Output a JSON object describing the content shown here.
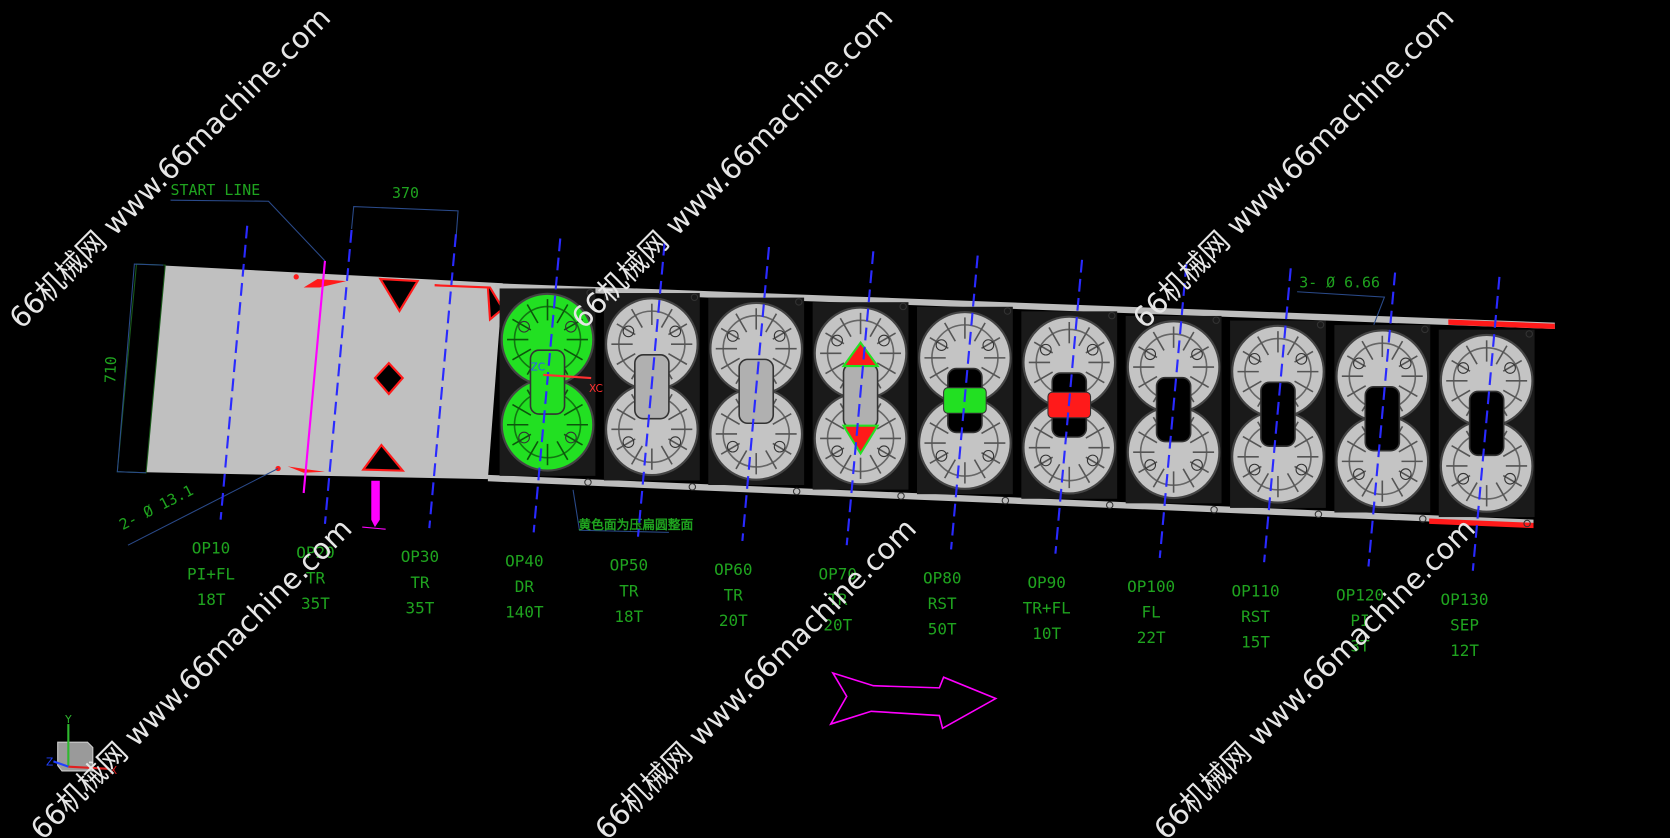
{
  "colors": {
    "background": "#000000",
    "label": "#1fa31f",
    "centerline": "#2a2aff",
    "cut": "#ff1a1a",
    "formed": "#22e022",
    "strip": "#c0c0c0",
    "pilot_line": "#ff00ff",
    "leader": "#2a4a8a"
  },
  "dimensions": {
    "start_line": "START LINE",
    "pitch": "370",
    "width": "710",
    "pilot_holes_left": "2- Ø 13.1",
    "pilot_holes_right": "3- Ø 6.66"
  },
  "note": "黄色面为压扁圆整面",
  "triad": {
    "x": "X",
    "y": "Y",
    "z": "Z"
  },
  "wcs": {
    "xc": "XC",
    "zc": "ZC"
  },
  "watermark": "66机械网 www.66machine.com",
  "stations": [
    {
      "op": "OP10",
      "process": "PI+FL",
      "tonnage": "18T",
      "state": "blank"
    },
    {
      "op": "OP20",
      "process": "TR",
      "tonnage": "35T",
      "state": "blank"
    },
    {
      "op": "OP30",
      "process": "TR",
      "tonnage": "35T",
      "state": "blank"
    },
    {
      "op": "OP40",
      "process": "DR",
      "tonnage": "140T",
      "state": "green"
    },
    {
      "op": "OP50",
      "process": "TR",
      "tonnage": "18T",
      "state": "gray"
    },
    {
      "op": "OP60",
      "process": "TR",
      "tonnage": "20T",
      "state": "gray"
    },
    {
      "op": "OP70",
      "process": "TR",
      "tonnage": "20T",
      "state": "red"
    },
    {
      "op": "OP80",
      "process": "RST",
      "tonnage": "50T",
      "state": "green-center"
    },
    {
      "op": "OP90",
      "process": "TR+FL",
      "tonnage": "10T",
      "state": "red-center"
    },
    {
      "op": "OP100",
      "process": "FL",
      "tonnage": "22T",
      "state": "gray"
    },
    {
      "op": "OP110",
      "process": "RST",
      "tonnage": "15T",
      "state": "gray"
    },
    {
      "op": "OP120",
      "process": "PI",
      "tonnage": "3T",
      "state": "gray"
    },
    {
      "op": "OP130",
      "process": "SEP",
      "tonnage": "12T",
      "state": "sep"
    }
  ]
}
